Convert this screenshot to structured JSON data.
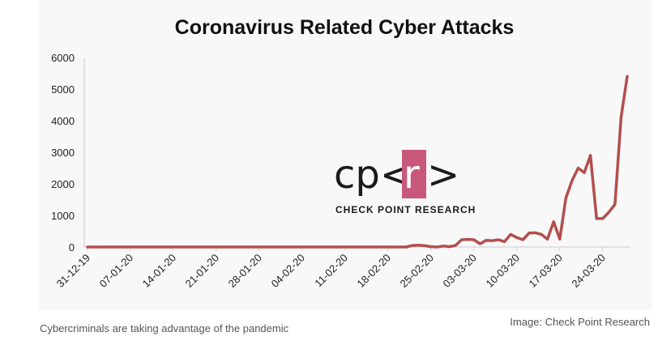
{
  "caption": "Cybercriminals are taking advantage of the pandemic",
  "credit": "Image: Check Point Research",
  "logo": {
    "mark_left": "cp<",
    "mark_r": "r",
    "mark_right": ">",
    "subtitle": "CHECK POINT RESEARCH",
    "accent_color": "#c8587a"
  },
  "colors": {
    "line": "#b24f4d",
    "axis": "#cccccc",
    "chart_background": "#f8f8f8"
  },
  "chart_data": {
    "type": "line",
    "title": "Coronavirus Related Cyber Attacks",
    "xlabel": "",
    "ylabel": "",
    "ylim": [
      0,
      6000
    ],
    "yticks": [
      0,
      1000,
      2000,
      3000,
      4000,
      5000,
      6000
    ],
    "grid": false,
    "x_tick_labels": [
      "31-12-19",
      "07-01-20",
      "14-01-20",
      "21-01-20",
      "28-01-20",
      "04-02-20",
      "11-02-20",
      "18-02-20",
      "25-02-20",
      "03-03-20",
      "10-03-20",
      "17-03-20",
      "24-03-20"
    ],
    "start_date": "2019-12-31",
    "series": [
      {
        "points": [
          [
            "2019-12-31",
            0
          ],
          [
            "2020-01-07",
            0
          ],
          [
            "2020-01-14",
            0
          ],
          [
            "2020-01-21",
            0
          ],
          [
            "2020-01-28",
            0
          ],
          [
            "2020-02-04",
            0
          ],
          [
            "2020-02-11",
            0
          ],
          [
            "2020-02-18",
            0
          ],
          [
            "2020-02-21",
            0
          ],
          [
            "2020-02-22",
            50
          ],
          [
            "2020-02-23",
            60
          ],
          [
            "2020-02-24",
            40
          ],
          [
            "2020-02-25",
            10
          ],
          [
            "2020-02-26",
            0
          ],
          [
            "2020-02-27",
            30
          ],
          [
            "2020-02-28",
            10
          ],
          [
            "2020-02-29",
            50
          ],
          [
            "2020-03-01",
            230
          ],
          [
            "2020-03-02",
            240
          ],
          [
            "2020-03-03",
            230
          ],
          [
            "2020-03-04",
            100
          ],
          [
            "2020-03-05",
            210
          ],
          [
            "2020-03-06",
            200
          ],
          [
            "2020-03-07",
            230
          ],
          [
            "2020-03-08",
            170
          ],
          [
            "2020-03-09",
            400
          ],
          [
            "2020-03-10",
            300
          ],
          [
            "2020-03-11",
            230
          ],
          [
            "2020-03-12",
            440
          ],
          [
            "2020-03-13",
            450
          ],
          [
            "2020-03-14",
            400
          ],
          [
            "2020-03-15",
            250
          ],
          [
            "2020-03-16",
            800
          ],
          [
            "2020-03-17",
            250
          ],
          [
            "2020-03-18",
            1550
          ],
          [
            "2020-03-19",
            2100
          ],
          [
            "2020-03-20",
            2500
          ],
          [
            "2020-03-21",
            2350
          ],
          [
            "2020-03-22",
            2900
          ],
          [
            "2020-03-23",
            900
          ],
          [
            "2020-03-24",
            900
          ],
          [
            "2020-03-25",
            1100
          ],
          [
            "2020-03-26",
            1350
          ],
          [
            "2020-03-27",
            4100
          ],
          [
            "2020-03-28",
            5400
          ]
        ]
      }
    ]
  }
}
